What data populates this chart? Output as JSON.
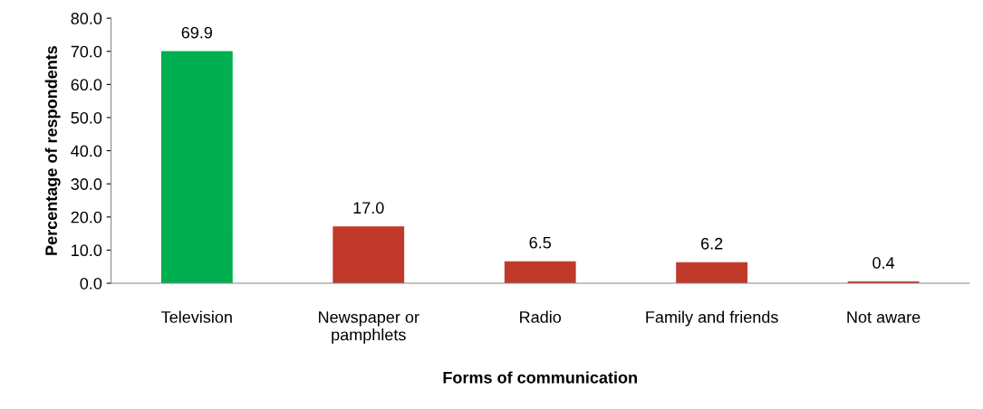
{
  "chart_data": {
    "type": "bar",
    "xlabel": "Forms of communication",
    "ylabel": "Percentage of respondents",
    "categories": [
      "Television",
      "Newspaper or\npamphlets",
      "Radio",
      "Family and friends",
      "Not aware"
    ],
    "values": [
      69.9,
      17.0,
      6.5,
      6.2,
      0.4
    ],
    "colors": [
      "#00b050",
      "#c0392b",
      "#c0392b",
      "#c0392b",
      "#c0392b"
    ],
    "value_labels": [
      "69.9",
      "17.0",
      "6.5",
      "6.2",
      "0.4"
    ],
    "ylim": [
      0,
      80
    ],
    "yticks": [
      {
        "value": 0,
        "label": "0.0"
      },
      {
        "value": 10,
        "label": "10.0"
      },
      {
        "value": 20,
        "label": "20.0"
      },
      {
        "value": 30,
        "label": "30.0"
      },
      {
        "value": 40,
        "label": "40.0"
      },
      {
        "value": 50,
        "label": "50.0"
      },
      {
        "value": 60,
        "label": "60.0"
      },
      {
        "value": 70,
        "label": "70.0"
      },
      {
        "value": 80,
        "label": "80.0"
      }
    ],
    "grid": false,
    "legend": false
  }
}
